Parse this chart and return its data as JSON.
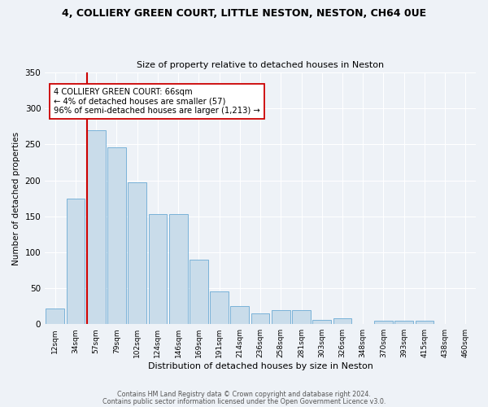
{
  "title1": "4, COLLIERY GREEN COURT, LITTLE NESTON, NESTON, CH64 0UE",
  "title2": "Size of property relative to detached houses in Neston",
  "xlabel": "Distribution of detached houses by size in Neston",
  "ylabel": "Number of detached properties",
  "bar_labels": [
    "12sqm",
    "34sqm",
    "57sqm",
    "79sqm",
    "102sqm",
    "124sqm",
    "146sqm",
    "169sqm",
    "191sqm",
    "214sqm",
    "236sqm",
    "258sqm",
    "281sqm",
    "303sqm",
    "326sqm",
    "348sqm",
    "370sqm",
    "393sqm",
    "415sqm",
    "438sqm",
    "460sqm"
  ],
  "bar_values": [
    22,
    175,
    270,
    246,
    197,
    153,
    153,
    90,
    46,
    25,
    15,
    20,
    20,
    6,
    8,
    0,
    5,
    5,
    5,
    0,
    0
  ],
  "bar_color": "#c9dcea",
  "bar_edge_color": "#6aaad4",
  "vline_color": "#cc0000",
  "vline_x_idx": 2,
  "annotation_text": "4 COLLIERY GREEN COURT: 66sqm\n← 4% of detached houses are smaller (57)\n96% of semi-detached houses are larger (1,213) →",
  "annotation_box_color": "#ffffff",
  "annotation_box_edge": "#cc0000",
  "ylim": [
    0,
    350
  ],
  "yticks": [
    0,
    50,
    100,
    150,
    200,
    250,
    300,
    350
  ],
  "footer1": "Contains HM Land Registry data © Crown copyright and database right 2024.",
  "footer2": "Contains public sector information licensed under the Open Government Licence v3.0.",
  "background_color": "#eef2f7",
  "grid_color": "#ffffff"
}
